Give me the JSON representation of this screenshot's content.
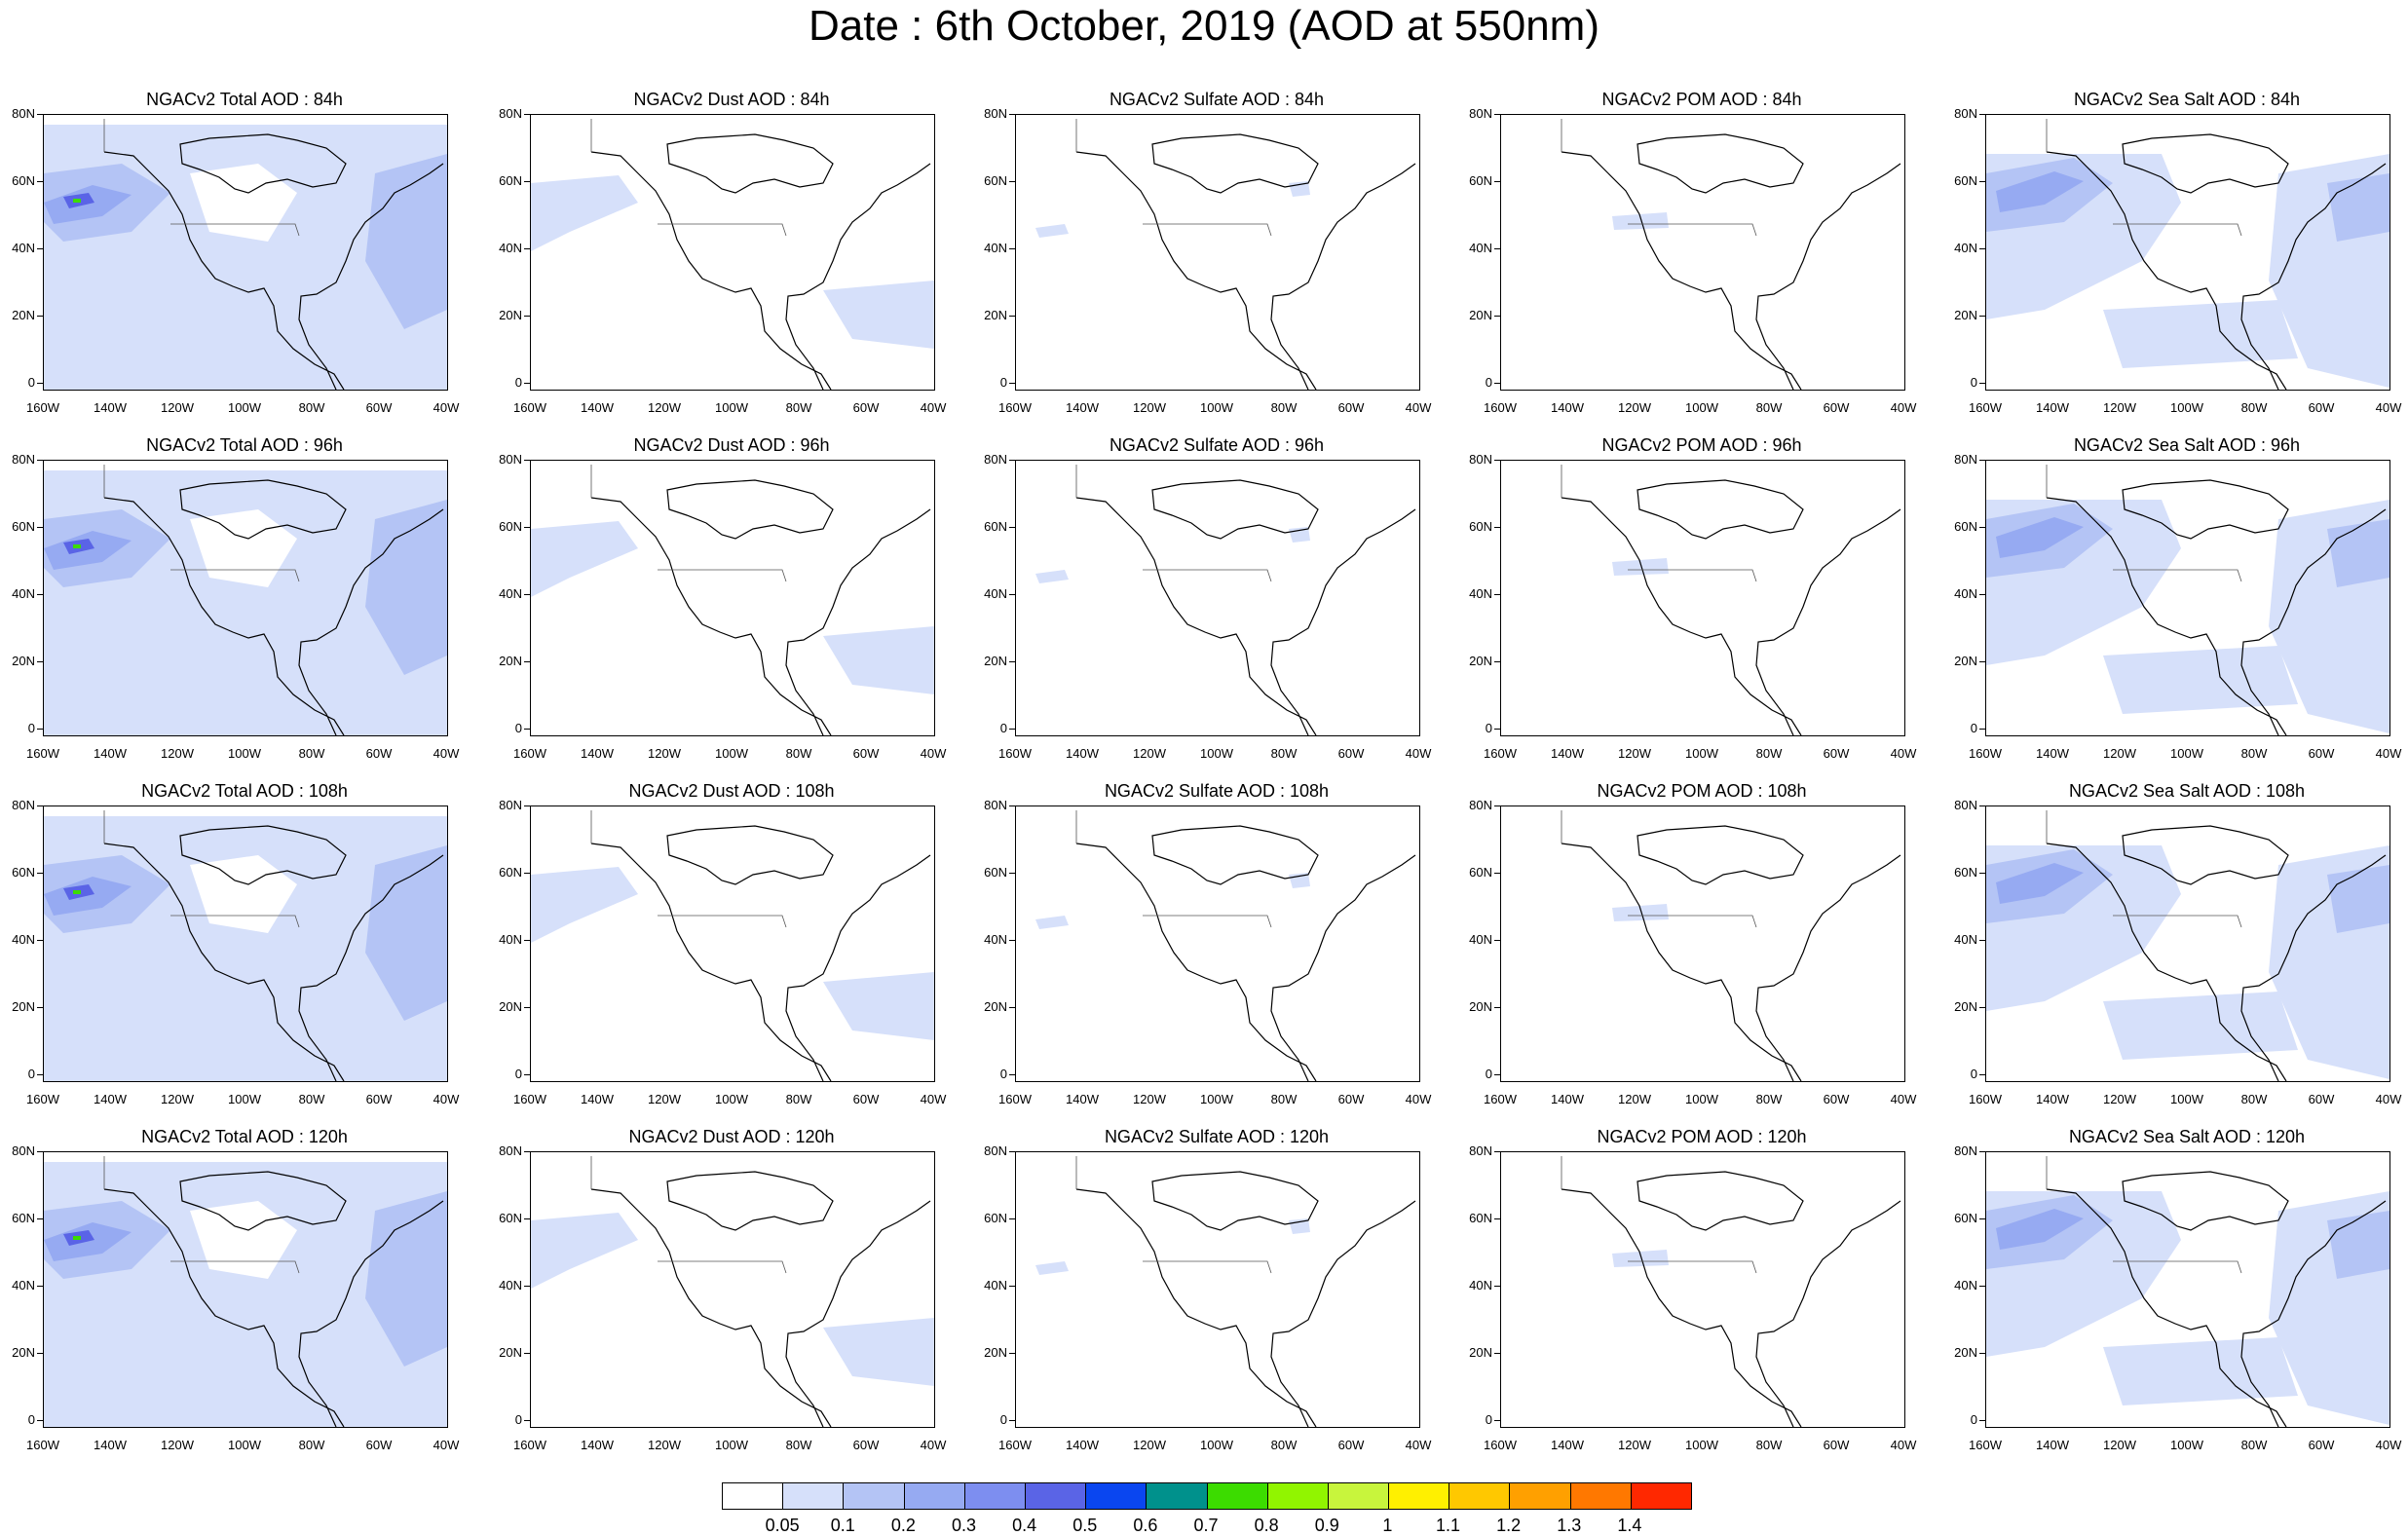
{
  "title": "Date : 6th October, 2019 (AOD at 550nm)",
  "panels": [
    {
      "title": "NGACv2 Total AOD : 84h",
      "field": "total"
    },
    {
      "title": "NGACv2 Dust AOD : 84h",
      "field": "dust"
    },
    {
      "title": "NGACv2 Sulfate AOD : 84h",
      "field": "sulfate"
    },
    {
      "title": "NGACv2 POM AOD : 84h",
      "field": "pom"
    },
    {
      "title": "NGACv2 Sea Salt AOD : 84h",
      "field": "seasalt"
    },
    {
      "title": "NGACv2 Total AOD : 96h",
      "field": "total"
    },
    {
      "title": "NGACv2 Dust AOD : 96h",
      "field": "dust"
    },
    {
      "title": "NGACv2 Sulfate AOD : 96h",
      "field": "sulfate"
    },
    {
      "title": "NGACv2 POM AOD : 96h",
      "field": "pom"
    },
    {
      "title": "NGACv2 Sea Salt AOD : 96h",
      "field": "seasalt"
    },
    {
      "title": "NGACv2 Total AOD : 108h",
      "field": "total"
    },
    {
      "title": "NGACv2 Dust AOD : 108h",
      "field": "dust"
    },
    {
      "title": "NGACv2 Sulfate AOD : 108h",
      "field": "sulfate"
    },
    {
      "title": "NGACv2 POM AOD : 108h",
      "field": "pom"
    },
    {
      "title": "NGACv2 Sea Salt AOD : 108h",
      "field": "seasalt"
    },
    {
      "title": "NGACv2 Total AOD : 120h",
      "field": "total"
    },
    {
      "title": "NGACv2 Dust AOD : 120h",
      "field": "dust"
    },
    {
      "title": "NGACv2 Sulfate AOD : 120h",
      "field": "sulfate"
    },
    {
      "title": "NGACv2 POM AOD : 120h",
      "field": "pom"
    },
    {
      "title": "NGACv2 Sea Salt  AOD : 120h",
      "field": "seasalt"
    }
  ],
  "lat_labels": [
    "80N",
    "60N",
    "40N",
    "20N",
    "0"
  ],
  "lon_labels": [
    "160W",
    "140W",
    "120W",
    "100W",
    "80W",
    "60W",
    "40W"
  ],
  "colorbar": {
    "labels": [
      "0.05",
      "0.1",
      "0.2",
      "0.3",
      "0.4",
      "0.5",
      "0.6",
      "0.7",
      "0.8",
      "0.9",
      "1",
      "1.1",
      "1.2",
      "1.3",
      "1.4"
    ],
    "colors": [
      "#ffffff",
      "#d6e0fa",
      "#b4c4f5",
      "#96aaf2",
      "#7d8ef0",
      "#5a64e6",
      "#0a46f0",
      "#00918c",
      "#3cdc00",
      "#91f500",
      "#c8f53c",
      "#fff000",
      "#ffc800",
      "#ffa000",
      "#ff7800",
      "#ff2800"
    ]
  },
  "aerosol_shade_colors": {
    "light": "#d6e0fa",
    "medium": "#b4c4f5",
    "strong": "#96aaf2",
    "peak": "#5a64e6",
    "max": "#3cdc00"
  }
}
